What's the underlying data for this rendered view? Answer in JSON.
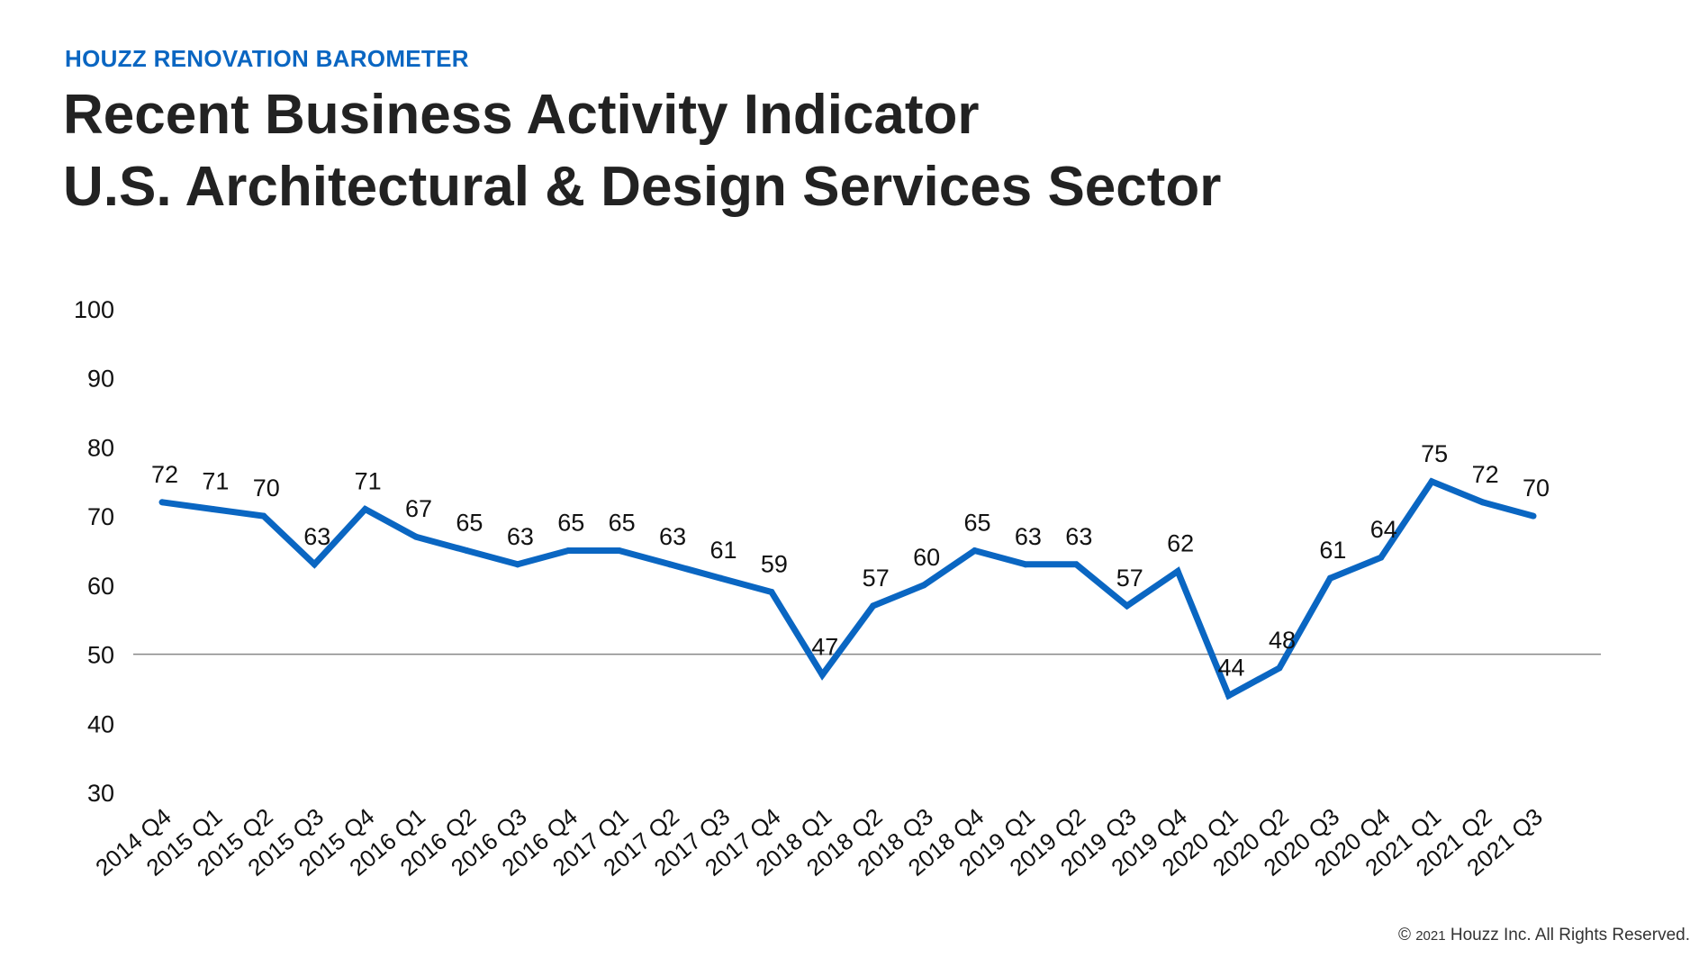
{
  "header": {
    "kicker": "HOUZZ RENOVATION BAROMETER",
    "title_line1": "Recent Business Activity Indicator",
    "title_line2": "U.S. Architectural & Design Services Sector"
  },
  "footer": {
    "copyright_symbol": "©",
    "copyright_year": "2021",
    "copyright_text": "Houzz Inc. All Rights Reserved."
  },
  "colors": {
    "line": "#0a66c2",
    "kicker": "#0a66c2",
    "text": "#222222",
    "reference_line": "#888888"
  },
  "chart_data": {
    "type": "line",
    "title": "",
    "xlabel": "",
    "ylabel": "",
    "ylim": [
      30,
      100
    ],
    "yticks": [
      100,
      90,
      80,
      70,
      60,
      50,
      40,
      30
    ],
    "reference_line": 50,
    "grid": false,
    "legend": "none",
    "categories": [
      "2014 Q4",
      "2015 Q1",
      "2015 Q2",
      "2015 Q3",
      "2015 Q4",
      "2016 Q1",
      "2016 Q2",
      "2016 Q3",
      "2016 Q4",
      "2017 Q1",
      "2017 Q2",
      "2017 Q3",
      "2017 Q4",
      "2018 Q1",
      "2018 Q2",
      "2018 Q3",
      "2018 Q4",
      "2019 Q1",
      "2019 Q2",
      "2019 Q3",
      "2019 Q4",
      "2020 Q1",
      "2020 Q2",
      "2020 Q3",
      "2020 Q4",
      "2021 Q1",
      "2021 Q2",
      "2021 Q3"
    ],
    "series": [
      {
        "values": [
          72,
          71,
          70,
          63,
          71,
          67,
          65,
          63,
          65,
          65,
          63,
          61,
          59,
          47,
          57,
          60,
          65,
          63,
          63,
          57,
          62,
          44,
          48,
          61,
          64,
          75,
          72,
          70
        ]
      }
    ]
  }
}
